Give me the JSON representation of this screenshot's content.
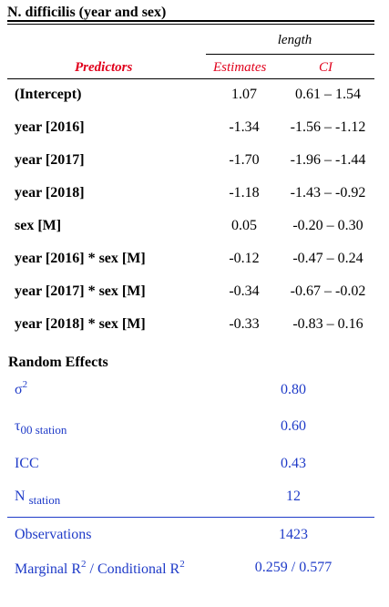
{
  "title": "N. difficilis (year and sex)",
  "dependent": "length",
  "headers": {
    "predictors": "Predictors",
    "estimates": "Estimates",
    "ci": "CI"
  },
  "rows": [
    {
      "predictor": "(Intercept)",
      "estimate": "1.07",
      "ci": "0.61 – 1.54"
    },
    {
      "predictor": "year [2016]",
      "estimate": "-1.34",
      "ci": "-1.56 – -1.12"
    },
    {
      "predictor": "year [2017]",
      "estimate": "-1.70",
      "ci": "-1.96 – -1.44"
    },
    {
      "predictor": "year [2018]",
      "estimate": "-1.18",
      "ci": "-1.43 – -0.92"
    },
    {
      "predictor": "sex [M]",
      "estimate": "0.05",
      "ci": "-0.20 – 0.30"
    },
    {
      "predictor": "year [2016] * sex [M]",
      "estimate": "-0.12",
      "ci": "-0.47 – 0.24"
    },
    {
      "predictor": "year [2017] * sex [M]",
      "estimate": "-0.34",
      "ci": "-0.67 – -0.02"
    },
    {
      "predictor": "year [2018] * sex [M]",
      "estimate": "-0.33",
      "ci": "-0.83 – 0.16"
    }
  ],
  "random_effects": {
    "heading": "Random Effects",
    "sigma": {
      "symbol": "σ",
      "sup": "2",
      "value": "0.80"
    },
    "tau": {
      "symbol": "τ",
      "sub": "00 station",
      "value": "0.60"
    },
    "icc": {
      "label": "ICC",
      "value": "0.43"
    },
    "n": {
      "label": "N",
      "sub": "station",
      "value": "12"
    }
  },
  "fit": {
    "observations": {
      "label": "Observations",
      "value": "1423"
    },
    "r2": {
      "label_a": "Marginal R",
      "sup_a": "2",
      "label_b": " / Conditional R",
      "sup_b": "2",
      "value": "0.259 / 0.577"
    }
  }
}
